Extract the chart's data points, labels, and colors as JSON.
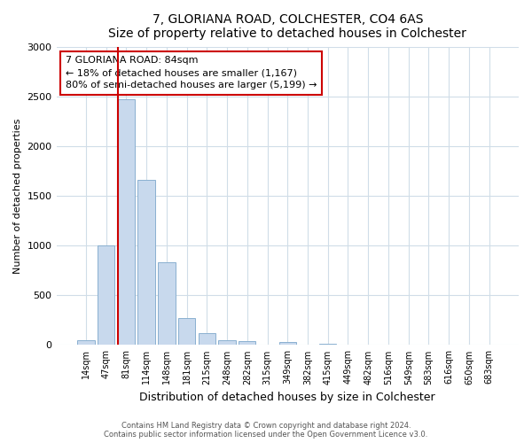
{
  "title": "7, GLORIANA ROAD, COLCHESTER, CO4 6AS",
  "subtitle": "Size of property relative to detached houses in Colchester",
  "xlabel": "Distribution of detached houses by size in Colchester",
  "ylabel": "Number of detached properties",
  "categories": [
    "14sqm",
    "47sqm",
    "81sqm",
    "114sqm",
    "148sqm",
    "181sqm",
    "215sqm",
    "248sqm",
    "282sqm",
    "315sqm",
    "349sqm",
    "382sqm",
    "415sqm",
    "449sqm",
    "482sqm",
    "516sqm",
    "549sqm",
    "583sqm",
    "616sqm",
    "650sqm",
    "683sqm"
  ],
  "values": [
    50,
    1000,
    2480,
    1660,
    830,
    270,
    120,
    50,
    40,
    0,
    35,
    0,
    15,
    0,
    0,
    0,
    0,
    0,
    0,
    0,
    0
  ],
  "bar_color": "#c8d9ed",
  "bar_edge_color": "#8ab0d0",
  "vline_color": "#cc0000",
  "vline_x_index": 2,
  "annotation_text": "7 GLORIANA ROAD: 84sqm\n← 18% of detached houses are smaller (1,167)\n80% of semi-detached houses are larger (5,199) →",
  "annotation_box_color": "#ffffff",
  "annotation_box_edge": "#cc0000",
  "ylim": [
    0,
    3000
  ],
  "yticks": [
    0,
    500,
    1000,
    1500,
    2000,
    2500,
    3000
  ],
  "footer_line1": "Contains HM Land Registry data © Crown copyright and database right 2024.",
  "footer_line2": "Contains public sector information licensed under the Open Government Licence v3.0.",
  "bg_color": "#ffffff",
  "grid_color": "#d0dde8"
}
